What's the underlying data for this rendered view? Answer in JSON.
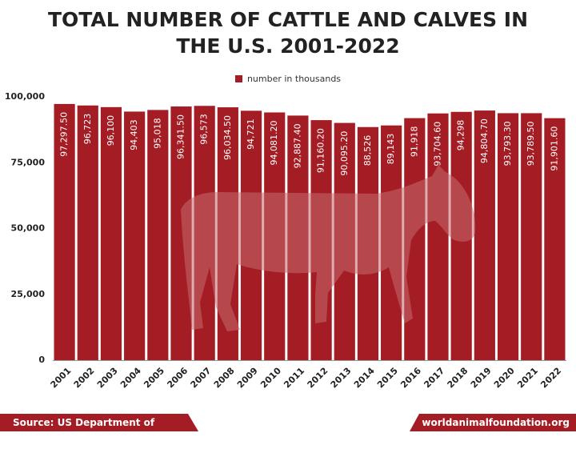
{
  "chart_data": {
    "type": "bar",
    "title": "TOTAL NUMBER OF CATTLE AND CALVES IN THE U.S. 2001-2022",
    "title_line1": "TOTAL NUMBER OF CATTLE AND CALVES IN",
    "title_line2": "THE U.S. 2001-2022",
    "legend": "number in thousands",
    "categories": [
      "2001",
      "2002",
      "2003",
      "2004",
      "2005",
      "2006",
      "2007",
      "2008",
      "2009",
      "2010",
      "2011",
      "2012",
      "2013",
      "2014",
      "2015",
      "2016",
      "2017",
      "2018",
      "2019",
      "2020",
      "2021",
      "2022"
    ],
    "values": [
      97297.5,
      96723,
      96100,
      94403,
      95018,
      96341.5,
      96573,
      96034.5,
      94721,
      94081.2,
      92887.4,
      91160.2,
      90095.2,
      88526,
      89143,
      91918,
      93704.6,
      94298,
      94804.7,
      93793.3,
      93789.5,
      91901.6
    ],
    "data_labels": [
      "97,297.50",
      "96,723",
      "96,100",
      "94,403",
      "95,018",
      "96,341.50",
      "96,573",
      "96,034.50",
      "94,721",
      "94,081.20",
      "92,887.40",
      "91,160.20",
      "90,095.20",
      "88,526",
      "89,143",
      "91,918",
      "93,704.60",
      "94,298",
      "94,804.70",
      "93,793.30",
      "93,789.50",
      "91,901.60"
    ],
    "y_ticks": [
      "0",
      "25,000",
      "50,000",
      "75,000",
      "100,000"
    ],
    "y_tick_values": [
      0,
      25000,
      50000,
      75000,
      100000
    ],
    "ylim": [
      0,
      100000
    ],
    "xlabel": "",
    "ylabel": "",
    "grid": false,
    "legend_position": "top-center",
    "bar_color": "#a41d24"
  },
  "footer": {
    "source": "Source: US Department of Agriculture",
    "site": "worldanimalfoundation.org"
  },
  "colors": {
    "accent": "#a41d24",
    "title_text": "#222222",
    "watermark": "#c46a6d"
  },
  "watermark_icon": "cow-silhouette-icon"
}
